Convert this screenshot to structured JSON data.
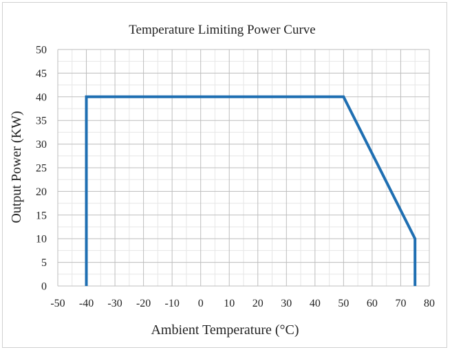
{
  "chart_data": {
    "type": "line",
    "title": "Temperature Limiting Power Curve",
    "xlabel": "Ambient Temperature (°C)",
    "ylabel": "Output Power (KW)",
    "xlim": [
      -50,
      80
    ],
    "ylim": [
      0,
      50
    ],
    "x_ticks": [
      -50,
      -40,
      -30,
      -20,
      -10,
      0,
      10,
      20,
      30,
      40,
      50,
      60,
      70,
      80
    ],
    "y_ticks": [
      0,
      5,
      10,
      15,
      20,
      25,
      30,
      35,
      40,
      45,
      50
    ],
    "grid": true,
    "legend": "none",
    "series": [
      {
        "name": "Output Power",
        "color": "#1f6fb2",
        "x": [
          -40,
          -40,
          50,
          75,
          75
        ],
        "y": [
          0,
          40,
          40,
          10,
          0
        ]
      }
    ]
  }
}
